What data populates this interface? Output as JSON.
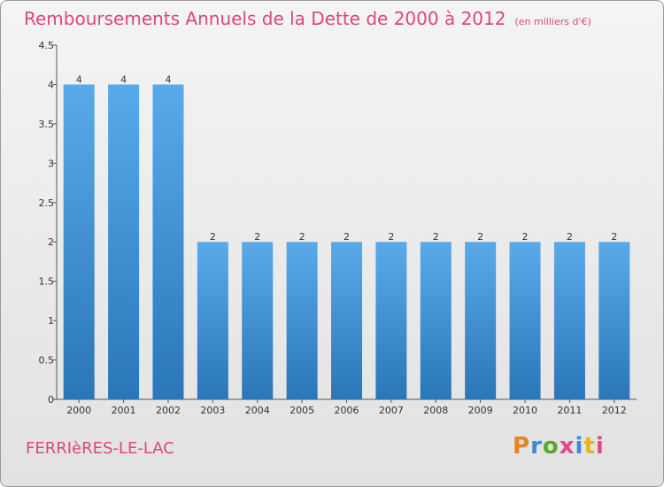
{
  "header": {
    "title": "Remboursements Annuels de la Dette de 2000 à 2012",
    "unit": "(en milliers d'€)"
  },
  "footer": {
    "commune": "FERRIèRES-LE-LAC",
    "logo_text": "Proxiti",
    "logo_colors": [
      "#e8841c",
      "#3a8ad8",
      "#5aa82a",
      "#e04a8a",
      "#3a8ad8",
      "#e8b41c",
      "#e04a8a"
    ]
  },
  "colors": {
    "accent": "#e0457b",
    "bar_top": "#5aaaea",
    "bar_bottom": "#2a76b8"
  },
  "chart_data": {
    "type": "bar",
    "categories": [
      "2000",
      "2001",
      "2002",
      "2003",
      "2004",
      "2005",
      "2006",
      "2007",
      "2008",
      "2009",
      "2010",
      "2011",
      "2012"
    ],
    "values": [
      4,
      4,
      4,
      2,
      2,
      2,
      2,
      2,
      2,
      2,
      2,
      2,
      2
    ],
    "data_labels": [
      "4",
      "4",
      "4",
      "2",
      "2",
      "2",
      "2",
      "2",
      "2",
      "2",
      "2",
      "2",
      "2"
    ],
    "ylim": [
      0,
      4.5
    ],
    "yticks": [
      0,
      0.5,
      1,
      1.5,
      2,
      2.5,
      3,
      3.5,
      4,
      4.5
    ],
    "ytick_labels": [
      "0",
      "0.5",
      "1",
      "1.5",
      "2",
      "2.5",
      "3",
      "3.5",
      "4",
      "4.5"
    ],
    "xlabel": "",
    "ylabel": "",
    "grid": false,
    "legend": "none"
  }
}
